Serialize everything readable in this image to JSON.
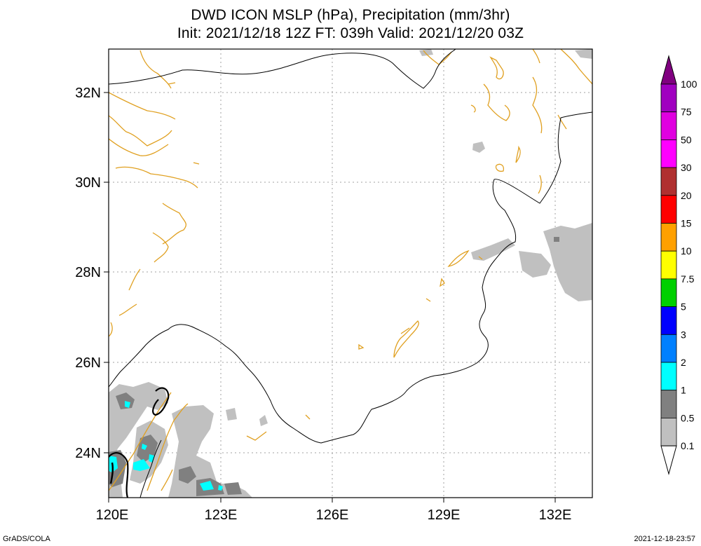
{
  "title": {
    "line1": "DWD ICON MSLP (hPa), Precipitation (mm/3hr)",
    "line2": "Init: 2021/12/18 12Z  FT: 039h  Valid: 2021/12/20 03Z"
  },
  "axes": {
    "lat_labels": [
      "32N",
      "30N",
      "28N",
      "26N",
      "24N"
    ],
    "lon_labels": [
      "120E",
      "123E",
      "126E",
      "129E",
      "132E"
    ]
  },
  "colorbar": {
    "levels": [
      "100",
      "75",
      "50",
      "30",
      "20",
      "15",
      "10",
      "7.5",
      "5",
      "3",
      "2",
      "1",
      "0.5",
      "0.1"
    ],
    "colors": [
      "#800080",
      "#a000c0",
      "#e000e0",
      "#ff00ff",
      "#b03030",
      "#ff0000",
      "#ffa000",
      "#ffff00",
      "#00d000",
      "#0000ff",
      "#0080ff",
      "#00ffff",
      "#808080",
      "#c0c0c0",
      "#ffffff"
    ]
  },
  "footer": {
    "left": "GrADS/COLA",
    "right": "2021-12-18-23:57"
  }
}
